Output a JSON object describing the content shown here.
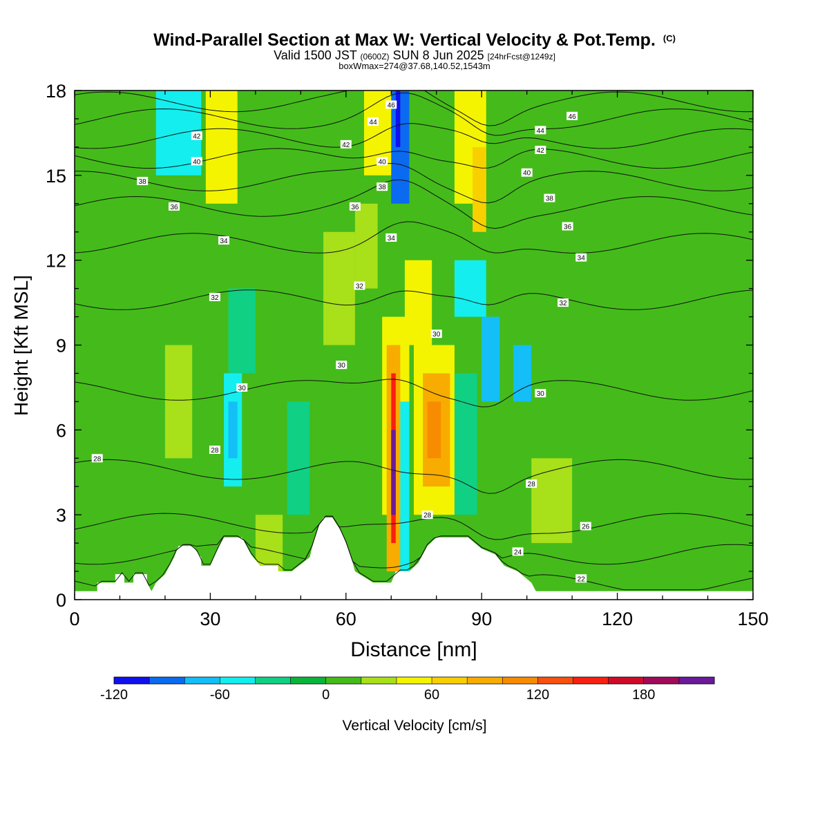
{
  "title": {
    "main": "Wind-Parallel Section at Max W: Vertical Velocity & Pot.Temp.",
    "main_tag": "(C)",
    "valid_prefix": "Valid 1500 JST",
    "valid_z": "(0600Z)",
    "valid_date": "SUN 8 Jun 2025",
    "valid_fcst": "[24hrFcst@1249z]",
    "box_info": "boxWmax=274@37.68,140.52,1543m"
  },
  "chart_data": {
    "type": "heatmap",
    "xlabel": "Distance [nm]",
    "ylabel": "Height [Kft MSL]",
    "xlim": [
      0,
      150
    ],
    "ylim": [
      0,
      18
    ],
    "x_ticks": [
      "0",
      "30",
      "60",
      "90",
      "120",
      "150"
    ],
    "y_ticks": [
      "0",
      "3",
      "6",
      "9",
      "12",
      "15",
      "18"
    ],
    "colorbar": {
      "label": "Vertical Velocity [cm/s]",
      "min": -120,
      "step": 20,
      "tick_labels": [
        "-120",
        "-60",
        "0",
        "60",
        "120",
        "180"
      ],
      "colors": [
        "#1010ee",
        "#0a6af0",
        "#14bef6",
        "#14eeee",
        "#10d084",
        "#0ab43a",
        "#44bb1a",
        "#a8e01a",
        "#f4f400",
        "#f8d000",
        "#f8ac00",
        "#f88c00",
        "#f85010",
        "#f82010",
        "#d00a2a",
        "#a00a5a",
        "#6a1a9a"
      ]
    },
    "cells": [
      {
        "x0": 0,
        "x1": 150,
        "y0": 0,
        "y1": 18,
        "w": 5
      },
      {
        "x0": 18,
        "x1": 28,
        "y0": 15,
        "y1": 18,
        "w": -50
      },
      {
        "x0": 29,
        "x1": 36,
        "y0": 14,
        "y1": 18,
        "w": 50
      },
      {
        "x0": 70,
        "x1": 74,
        "y0": 14,
        "y1": 18,
        "w": -90
      },
      {
        "x0": 71,
        "x1": 72,
        "y0": 16,
        "y1": 18,
        "w": -110
      },
      {
        "x0": 64,
        "x1": 70,
        "y0": 15,
        "y1": 18,
        "w": 40
      },
      {
        "x0": 84,
        "x1": 91,
        "y0": 14,
        "y1": 18,
        "w": 55
      },
      {
        "x0": 88,
        "x1": 91,
        "y0": 13,
        "y1": 16,
        "w": 60
      },
      {
        "x0": 62,
        "x1": 67,
        "y0": 11,
        "y1": 14,
        "w": 30
      },
      {
        "x0": 73,
        "x1": 79,
        "y0": 9,
        "y1": 12,
        "w": 55
      },
      {
        "x0": 84,
        "x1": 91,
        "y0": 10,
        "y1": 12,
        "w": -50
      },
      {
        "x0": 90,
        "x1": 94,
        "y0": 7,
        "y1": 10,
        "w": -70
      },
      {
        "x0": 97,
        "x1": 101,
        "y0": 7,
        "y1": 9,
        "w": -70
      },
      {
        "x0": 34,
        "x1": 40,
        "y0": 8,
        "y1": 11,
        "w": -30
      },
      {
        "x0": 33,
        "x1": 37,
        "y0": 4,
        "y1": 8,
        "w": -60
      },
      {
        "x0": 34,
        "x1": 36,
        "y0": 5,
        "y1": 7,
        "w": -80
      },
      {
        "x0": 20,
        "x1": 26,
        "y0": 5,
        "y1": 9,
        "w": 30
      },
      {
        "x0": 47,
        "x1": 52,
        "y0": 3,
        "y1": 7,
        "w": -30
      },
      {
        "x0": 68,
        "x1": 74,
        "y0": 3,
        "y1": 10,
        "w": 40
      },
      {
        "x0": 69,
        "x1": 72,
        "y0": 1,
        "y1": 9,
        "w": 80
      },
      {
        "x0": 70,
        "x1": 71,
        "y0": 2,
        "y1": 8,
        "w": 140
      },
      {
        "x0": 70,
        "x1": 71,
        "y0": 3,
        "y1": 6,
        "w": 200
      },
      {
        "x0": 72,
        "x1": 74,
        "y0": 1,
        "y1": 7,
        "w": -60
      },
      {
        "x0": 75,
        "x1": 84,
        "y0": 3,
        "y1": 9,
        "w": 55
      },
      {
        "x0": 77,
        "x1": 83,
        "y0": 4,
        "y1": 8,
        "w": 90
      },
      {
        "x0": 78,
        "x1": 81,
        "y0": 5,
        "y1": 7,
        "w": 115
      },
      {
        "x0": 84,
        "x1": 89,
        "y0": 3,
        "y1": 8,
        "w": -30
      },
      {
        "x0": 40,
        "x1": 46,
        "y0": 1,
        "y1": 3,
        "w": 30
      },
      {
        "x0": 55,
        "x1": 62,
        "y0": 9,
        "y1": 13,
        "w": 25
      },
      {
        "x0": 101,
        "x1": 110,
        "y0": 2,
        "y1": 5,
        "w": 20
      }
    ],
    "terrain": [
      [
        0,
        0.3
      ],
      [
        5,
        0.3
      ],
      [
        5,
        0.6
      ],
      [
        9,
        0.6
      ],
      [
        9,
        0.9
      ],
      [
        11,
        0.9
      ],
      [
        11,
        0.6
      ],
      [
        13,
        0.6
      ],
      [
        13,
        0.9
      ],
      [
        16,
        0.9
      ],
      [
        16,
        0.6
      ],
      [
        17,
        0.3
      ],
      [
        18,
        0.6
      ],
      [
        20,
        0.9
      ],
      [
        22,
        1.5
      ],
      [
        23,
        1.9
      ],
      [
        26,
        1.9
      ],
      [
        28,
        1.5
      ],
      [
        28,
        1.2
      ],
      [
        30,
        1.2
      ],
      [
        32,
        1.9
      ],
      [
        33,
        2.2
      ],
      [
        37,
        2.2
      ],
      [
        39,
        1.6
      ],
      [
        41,
        1.2
      ],
      [
        45,
        1.2
      ],
      [
        45,
        1.0
      ],
      [
        48,
        1.0
      ],
      [
        52,
        1.5
      ],
      [
        53,
        2.2
      ],
      [
        54,
        2.6
      ],
      [
        55,
        2.9
      ],
      [
        57,
        2.9
      ],
      [
        59,
        2.4
      ],
      [
        61,
        1.6
      ],
      [
        62,
        1.0
      ],
      [
        66,
        0.6
      ],
      [
        70,
        0.6
      ],
      [
        71,
        1.0
      ],
      [
        74,
        1.0
      ],
      [
        76,
        1.3
      ],
      [
        78,
        1.9
      ],
      [
        80,
        2.2
      ],
      [
        87,
        2.2
      ],
      [
        90,
        1.8
      ],
      [
        93,
        1.6
      ],
      [
        95,
        1.2
      ],
      [
        98,
        1.0
      ],
      [
        101,
        0.6
      ],
      [
        102,
        0.3
      ],
      [
        150,
        0.3
      ],
      [
        150,
        0
      ]
    ],
    "isentropes": [
      {
        "value": 22,
        "y": 0.55
      },
      {
        "value": 24,
        "y": 1.6
      },
      {
        "value": 26,
        "y": 2.7
      },
      {
        "value": 28,
        "y": 4.6
      },
      {
        "value": 30,
        "y": 7.4
      },
      {
        "value": 32,
        "y": 10.6
      },
      {
        "value": 34,
        "y": 12.6
      },
      {
        "value": 36,
        "y": 13.9
      },
      {
        "value": 38,
        "y": 14.8
      },
      {
        "value": 40,
        "y": 15.6
      },
      {
        "value": 42,
        "y": 16.3
      },
      {
        "value": 44,
        "y": 17.0
      },
      {
        "value": 46,
        "y": 17.6
      }
    ],
    "contour_labels": [
      {
        "text": "28",
        "x": 5,
        "y": 5.0
      },
      {
        "text": "28",
        "x": 31,
        "y": 5.3
      },
      {
        "text": "30",
        "x": 37,
        "y": 7.5
      },
      {
        "text": "30",
        "x": 59,
        "y": 8.3
      },
      {
        "text": "30",
        "x": 80,
        "y": 9.4
      },
      {
        "text": "30",
        "x": 103,
        "y": 7.3
      },
      {
        "text": "28",
        "x": 101,
        "y": 4.1
      },
      {
        "text": "28",
        "x": 78,
        "y": 3.0
      },
      {
        "text": "26",
        "x": 113,
        "y": 2.6
      },
      {
        "text": "24",
        "x": 98,
        "y": 1.7
      },
      {
        "text": "22",
        "x": 112,
        "y": 0.75
      },
      {
        "text": "32",
        "x": 31,
        "y": 10.7
      },
      {
        "text": "32",
        "x": 63,
        "y": 11.1
      },
      {
        "text": "32",
        "x": 108,
        "y": 10.5
      },
      {
        "text": "34",
        "x": 33,
        "y": 12.7
      },
      {
        "text": "34",
        "x": 70,
        "y": 12.8
      },
      {
        "text": "34",
        "x": 112,
        "y": 12.1
      },
      {
        "text": "36",
        "x": 22,
        "y": 13.9
      },
      {
        "text": "36",
        "x": 62,
        "y": 13.9
      },
      {
        "text": "36",
        "x": 109,
        "y": 13.2
      },
      {
        "text": "38",
        "x": 15,
        "y": 14.8
      },
      {
        "text": "38",
        "x": 68,
        "y": 14.6
      },
      {
        "text": "38",
        "x": 105,
        "y": 14.2
      },
      {
        "text": "40",
        "x": 27,
        "y": 15.5
      },
      {
        "text": "40",
        "x": 68,
        "y": 15.5
      },
      {
        "text": "40",
        "x": 100,
        "y": 15.1
      },
      {
        "text": "42",
        "x": 27,
        "y": 16.4
      },
      {
        "text": "42",
        "x": 60,
        "y": 16.1
      },
      {
        "text": "42",
        "x": 103,
        "y": 15.9
      },
      {
        "text": "44",
        "x": 66,
        "y": 16.9
      },
      {
        "text": "44",
        "x": 103,
        "y": 16.6
      },
      {
        "text": "46",
        "x": 70,
        "y": 17.5
      },
      {
        "text": "46",
        "x": 110,
        "y": 17.1
      }
    ]
  }
}
